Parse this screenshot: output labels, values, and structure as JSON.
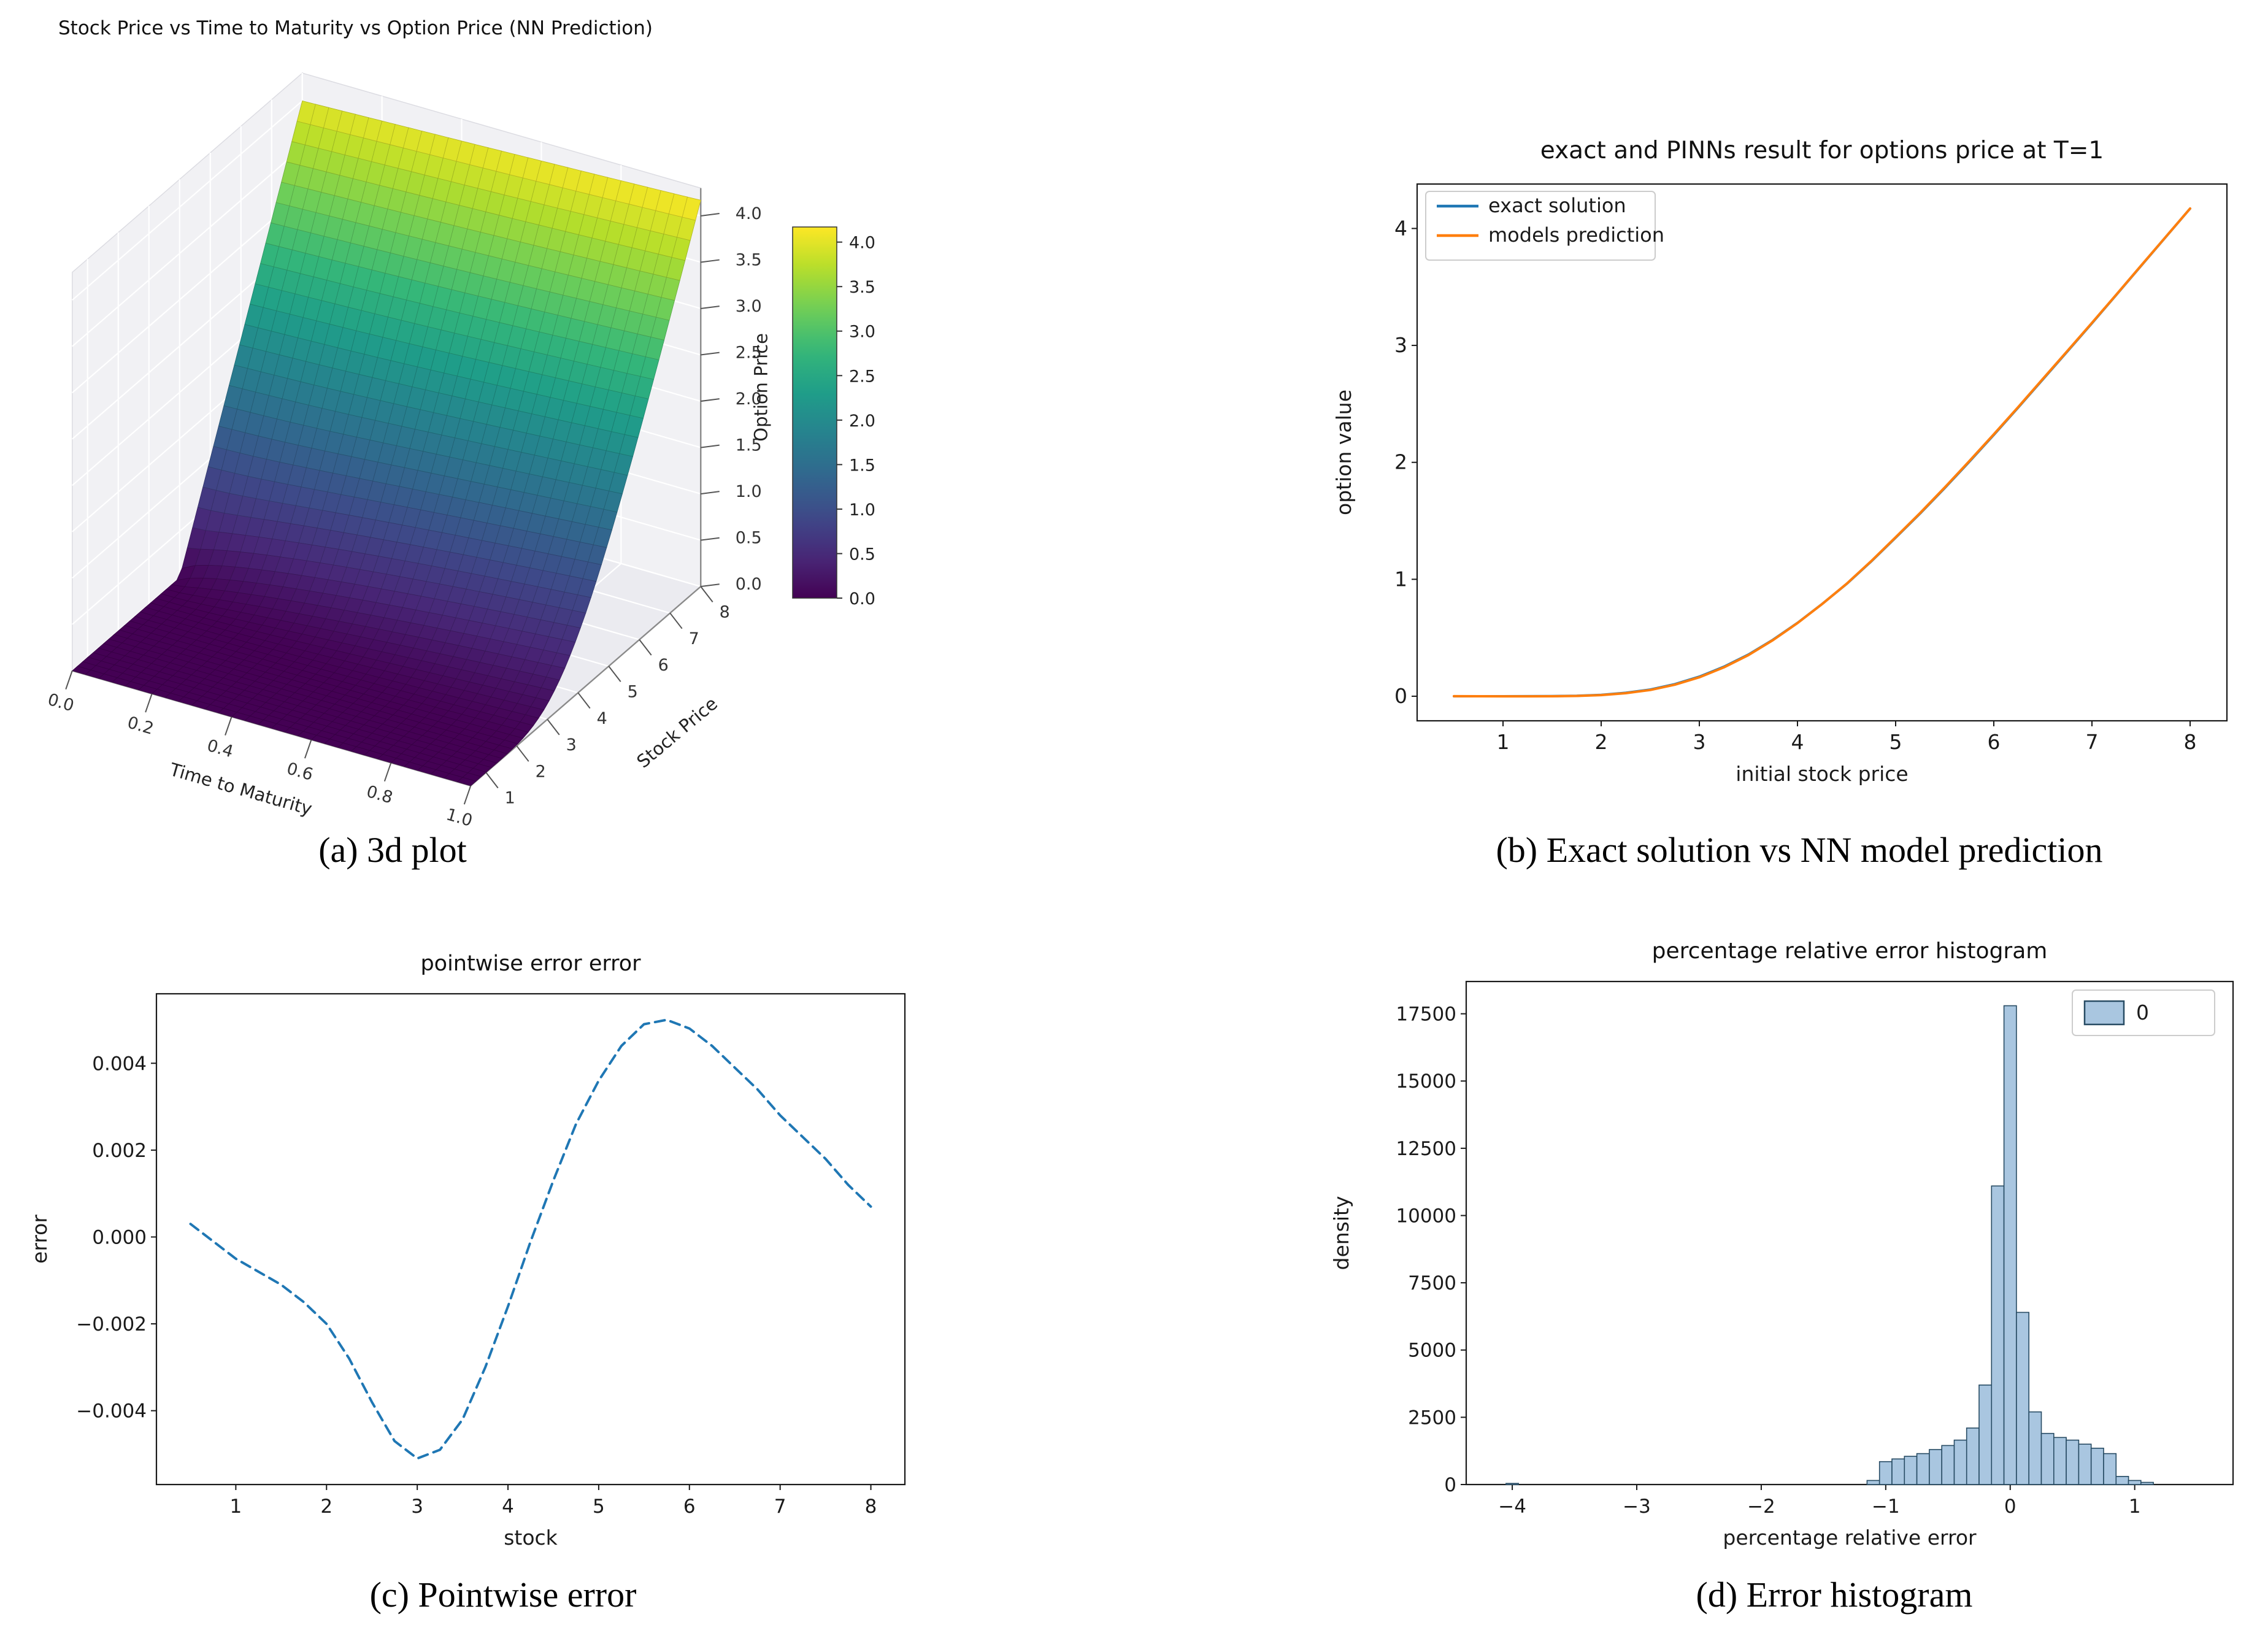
{
  "captions": {
    "a": "(a) 3d plot",
    "b": "(b) Exact solution vs NN model prediction",
    "c": "(c) Pointwise error",
    "d": "(d) Error histogram"
  },
  "colors": {
    "blue": "#1f77b4",
    "orange": "#ff7f0e",
    "hist_fill": "#a9c6e0",
    "hist_edge": "#274b63"
  },
  "chart_data": [
    {
      "id": "surface3d",
      "type": "surface3d",
      "title": "Stock Price vs Time to Maturity vs Option Price (NN Prediction)",
      "xlabel": "Time to Maturity",
      "ylabel": "Stock Price",
      "zlabel": "Option Price",
      "xlim": [
        0,
        1
      ],
      "ylim": [
        0.5,
        8
      ],
      "zlim": [
        0,
        4.3
      ],
      "xticks": {
        "values": [
          0,
          0.2,
          0.4,
          0.6,
          0.8,
          1.0
        ],
        "labels": [
          "0.0",
          "0.2",
          "0.4",
          "0.6",
          "0.8",
          "1.0"
        ]
      },
      "yticks": {
        "values": [
          1,
          2,
          3,
          4,
          5,
          6,
          7,
          8
        ],
        "labels": [
          "1",
          "2",
          "3",
          "4",
          "5",
          "6",
          "7",
          "8"
        ]
      },
      "zticks": {
        "values": [
          0,
          0.5,
          1,
          1.5,
          2,
          2.5,
          3,
          3.5,
          4
        ],
        "labels": [
          "0.0",
          "0.5",
          "1.0",
          "1.5",
          "2.0",
          "2.5",
          "3.0",
          "3.5",
          "4.0"
        ]
      },
      "colorbar": {
        "vmin": 0,
        "vmax": 4.17,
        "tick_values": [
          0,
          0.5,
          1,
          1.5,
          2,
          2.5,
          3,
          3.5,
          4
        ],
        "tick_labels": [
          "0.0",
          "0.5",
          "1.0",
          "1.5",
          "2.0",
          "2.5",
          "3.0",
          "3.5",
          "4.0"
        ]
      },
      "colormap": "viridis",
      "colormap_stops": [
        [
          0,
          "#440154"
        ],
        [
          0.111,
          "#482878"
        ],
        [
          0.222,
          "#3e4a89"
        ],
        [
          0.333,
          "#31688e"
        ],
        [
          0.444,
          "#26828e"
        ],
        [
          0.556,
          "#1f9e89"
        ],
        [
          0.667,
          "#35b779"
        ],
        [
          0.778,
          "#6ece58"
        ],
        [
          0.889,
          "#b5de2b"
        ],
        [
          1,
          "#fde725"
        ]
      ],
      "surface_model": {
        "kind": "black-scholes-call",
        "strike": 4,
        "rate": 0.04,
        "sigma": 0.35,
        "grid_t": 30,
        "grid_s": 44
      }
    },
    {
      "id": "exact_vs_prediction",
      "type": "line",
      "title": "exact and PINNs result for options price at T=1",
      "xlabel": "initial stock price",
      "ylabel": "option value",
      "xlim": [
        0.125,
        8.375
      ],
      "ylim": [
        -0.21,
        4.38
      ],
      "xticks": {
        "values": [
          1,
          2,
          3,
          4,
          5,
          6,
          7,
          8
        ],
        "labels": [
          "1",
          "2",
          "3",
          "4",
          "5",
          "6",
          "7",
          "8"
        ]
      },
      "yticks": {
        "values": [
          0,
          1,
          2,
          3,
          4
        ],
        "labels": [
          "0",
          "1",
          "2",
          "3",
          "4"
        ]
      },
      "x": [
        0.5,
        0.75,
        1,
        1.25,
        1.5,
        1.75,
        2,
        2.25,
        2.5,
        2.75,
        3,
        3.25,
        3.5,
        3.75,
        4,
        4.25,
        4.5,
        4.75,
        5,
        5.25,
        5.5,
        5.75,
        6,
        6.25,
        6.5,
        6.75,
        7,
        7.25,
        7.5,
        7.75,
        8
      ],
      "series": [
        {
          "name": "exact solution",
          "color": "#1f77b4",
          "dash": false,
          "values": [
            0,
            0,
            0,
            0.0001,
            0.001,
            0.004,
            0.012,
            0.029,
            0.057,
            0.103,
            0.167,
            0.252,
            0.356,
            0.483,
            0.627,
            0.788,
            0.96,
            1.152,
            1.356,
            1.563,
            1.78,
            2.005,
            2.235,
            2.47,
            2.71,
            2.949,
            3.19,
            3.434,
            3.68,
            3.925,
            4.17
          ]
        },
        {
          "name": "models prediction",
          "color": "#ff7f0e",
          "dash": false,
          "values": [
            0.0003,
            -0.0001,
            -0.0005,
            -0.0007,
            -0.0001,
            0.0025,
            0.01,
            0.0262,
            0.0532,
            0.0983,
            0.1619,
            0.2471,
            0.3518,
            0.48,
            0.6254,
            0.7879,
            0.9613,
            1.1546,
            1.3596,
            1.5674,
            1.7849,
            2.01,
            2.2398,
            2.4744,
            2.7139,
            2.9524,
            3.1928,
            3.4363,
            3.6818,
            3.9262,
            4.1707
          ]
        }
      ],
      "legend": {
        "position": "upper left",
        "entries": [
          "exact solution",
          "models prediction"
        ]
      }
    },
    {
      "id": "pointwise_error",
      "type": "line",
      "title": "pointwise error error",
      "xlabel": "stock",
      "ylabel": "error",
      "xlim": [
        0.125,
        8.375
      ],
      "ylim": [
        -0.0057,
        0.0056
      ],
      "xticks": {
        "values": [
          1,
          2,
          3,
          4,
          5,
          6,
          7,
          8
        ],
        "labels": [
          "1",
          "2",
          "3",
          "4",
          "5",
          "6",
          "7",
          "8"
        ]
      },
      "yticks": {
        "values": [
          -0.004,
          -0.002,
          0,
          0.002,
          0.004
        ],
        "labels": [
          "−0.004",
          "−0.002",
          "0.000",
          "0.002",
          "0.004"
        ]
      },
      "x": [
        0.5,
        0.75,
        1,
        1.25,
        1.5,
        1.75,
        2,
        2.25,
        2.5,
        2.75,
        3,
        3.25,
        3.5,
        3.75,
        4,
        4.25,
        4.5,
        4.75,
        5,
        5.25,
        5.5,
        5.75,
        6,
        6.25,
        6.5,
        6.75,
        7,
        7.25,
        7.5,
        7.75,
        8
      ],
      "series": [
        {
          "name": "error",
          "color": "#1f77b4",
          "dash": true,
          "values": [
            0.0003,
            -0.0001,
            -0.0005,
            -0.0008,
            -0.0011,
            -0.0015,
            -0.002,
            -0.0028,
            -0.0038,
            -0.0047,
            -0.0051,
            -0.0049,
            -0.0042,
            -0.003,
            -0.0016,
            -0.0001,
            0.0013,
            0.0026,
            0.0036,
            0.0044,
            0.0049,
            0.005,
            0.0048,
            0.0044,
            0.0039,
            0.0034,
            0.0028,
            0.0023,
            0.0018,
            0.0012,
            0.0007
          ]
        }
      ],
      "legend": null
    },
    {
      "id": "error_histogram",
      "type": "histogram",
      "title": "percentage relative error histogram",
      "xlabel": "percentage relative error",
      "ylabel": "density",
      "xlim": [
        -4.37,
        1.79
      ],
      "ylim": [
        0,
        18700
      ],
      "xticks": {
        "values": [
          -4,
          -3,
          -2,
          -1,
          0,
          1
        ],
        "labels": [
          "−4",
          "−3",
          "−2",
          "−1",
          "0",
          "1"
        ]
      },
      "yticks": {
        "values": [
          0,
          2500,
          5000,
          7500,
          10000,
          12500,
          15000,
          17500
        ],
        "labels": [
          "0",
          "2500",
          "5000",
          "7500",
          "10000",
          "12500",
          "15000",
          "17500"
        ]
      },
      "bin_width": 0.1,
      "bin_lefts": [
        -4.05,
        -1.15,
        -1.05,
        -0.95,
        -0.85,
        -0.75,
        -0.65,
        -0.55,
        -0.45,
        -0.35,
        -0.25,
        -0.15,
        -0.05,
        0.05,
        0.15,
        0.25,
        0.35,
        0.45,
        0.55,
        0.65,
        0.75,
        0.85,
        0.95,
        1.05
      ],
      "heights": [
        40,
        150,
        850,
        950,
        1050,
        1150,
        1300,
        1450,
        1650,
        2100,
        3700,
        11100,
        17800,
        6400,
        2700,
        1900,
        1750,
        1650,
        1500,
        1350,
        1150,
        300,
        150,
        80
      ],
      "bar_fill": "#a9c6e0",
      "bar_edge": "#274b63",
      "legend": {
        "position": "upper right",
        "entries": [
          "0"
        ]
      }
    }
  ]
}
